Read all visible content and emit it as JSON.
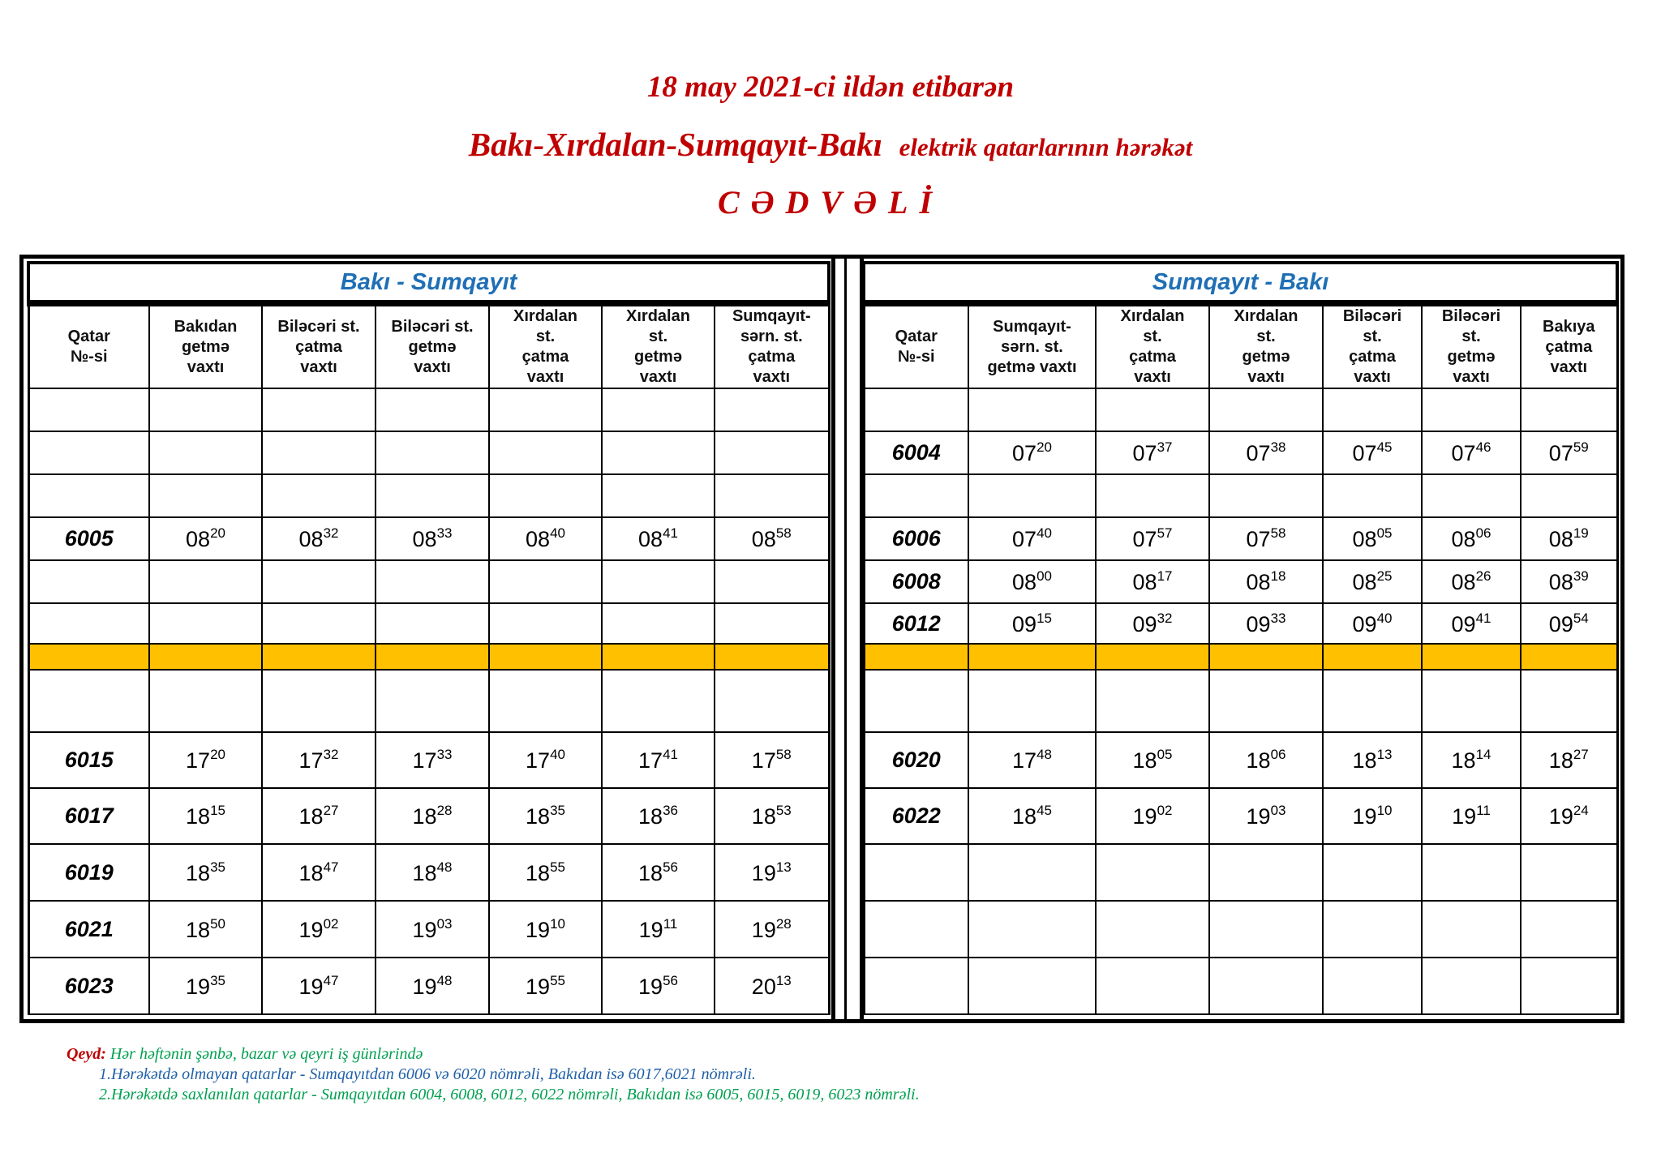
{
  "title": {
    "line1": "18  may  2021-ci ildən etibarən",
    "line2_main": "Bakı-Xırdalan-Sumqayıt-Bakı",
    "line2_rest": "elektrik qatarlarının  hərəkət",
    "line3": "CƏDVƏLİ"
  },
  "colors": {
    "title": "#c00000",
    "section": "#1f6fb5",
    "highlight_row": "#ffc000",
    "note_green": "#00a050",
    "note_blue": "#1f5fa8"
  },
  "left": {
    "section": "Bakı - Sumqayıt",
    "headers": [
      "Qatar\n№-si",
      "Bakıdan\ngetmə\nvaxtı",
      "Biləcəri st.\nçatma\nvaxtı",
      "Biləcəri st.\ngetmə\nvaxtı",
      "Xırdalan\nst.\nçatma\nvaxtı",
      "Xırdalan\nst.\ngetmə\nvaxtı",
      "Sumqayıt-\nsərn. st.\nçatma\nvaxtı"
    ],
    "rows": [
      {
        "train": "",
        "times": []
      },
      {
        "train": "",
        "times": []
      },
      {
        "train": "",
        "times": []
      },
      {
        "train": "6005",
        "times": [
          "08:20",
          "08:32",
          "08:33",
          "08:40",
          "08:41",
          "08:58"
        ]
      },
      {
        "train": "",
        "times": []
      },
      {
        "train": "",
        "times": []
      },
      {
        "highlight": true,
        "train": "",
        "times": []
      },
      {
        "train": "",
        "times": []
      },
      {
        "train": "6015",
        "times": [
          "17:20",
          "17:32",
          "17:33",
          "17:40",
          "17:41",
          "17:58"
        ]
      },
      {
        "train": "6017",
        "times": [
          "18:15",
          "18:27",
          "18:28",
          "18:35",
          "18:36",
          "18:53"
        ]
      },
      {
        "train": "6019",
        "times": [
          "18:35",
          "18:47",
          "18:48",
          "18:55",
          "18:56",
          "19:13"
        ]
      },
      {
        "train": "6021",
        "times": [
          "18:50",
          "19:02",
          "19:03",
          "19:10",
          "19:11",
          "19:28"
        ]
      },
      {
        "train": "6023",
        "times": [
          "19:35",
          "19:47",
          "19:48",
          "19:55",
          "19:56",
          "20:13"
        ]
      }
    ]
  },
  "right": {
    "section": "Sumqayıt - Bakı",
    "headers": [
      "Qatar\n№-si",
      "Sumqayıt-\nsərn.  st.\ngetmə vaxtı",
      "Xırdalan\nst.\nçatma\nvaxtı",
      "Xırdalan\nst.\ngetmə\nvaxtı",
      "Biləcəri\nst.\nçatma\nvaxtı",
      "Biləcəri\nst.\ngetmə\nvaxtı",
      "Bakıya\nçatma\nvaxtı"
    ],
    "rows": [
      {
        "train": "",
        "times": []
      },
      {
        "train": "6004",
        "times": [
          "07:20",
          "07:37",
          "07:38",
          "07:45",
          "07:46",
          "07:59"
        ]
      },
      {
        "train": "",
        "times": []
      },
      {
        "train": "6006",
        "times": [
          "07:40",
          "07:57",
          "07:58",
          "08:05",
          "08:06",
          "08:19"
        ]
      },
      {
        "train": "6008",
        "times": [
          "08:00",
          "08:17",
          "08:18",
          "08:25",
          "08:26",
          "08:39"
        ]
      },
      {
        "train": "6012",
        "times": [
          "09:15",
          "09:32",
          "09:33",
          "09:40",
          "09:41",
          "09:54"
        ]
      },
      {
        "highlight": true,
        "train": "",
        "times": []
      },
      {
        "train": "",
        "times": []
      },
      {
        "train": "6020",
        "times": [
          "17:48",
          "18:05",
          "18:06",
          "18:13",
          "18:14",
          "18:27"
        ]
      },
      {
        "train": "6022",
        "times": [
          "18:45",
          "19:02",
          "19:03",
          "19:10",
          "19:11",
          "19:24"
        ]
      },
      {
        "train": "",
        "times": []
      },
      {
        "train": "",
        "times": []
      },
      {
        "train": "",
        "times": []
      }
    ]
  },
  "notes": {
    "label": "Qeyd:",
    "intro": "Hər həftənin şənbə, bazar və qeyri iş günlərində",
    "item1": "1.Hərəkətdə olmayan qatarlar - Sumqayıtdan 6006 və 6020 nömrəli, Bakıdan isə 6017,6021 nömrəli.",
    "item2": "2.Hərəkətdə saxlanılan qatarlar - Sumqayıtdan 6004, 6008, 6012, 6022  nömrəli, Bakıdan isə 6005, 6015, 6019, 6023 nömrəli."
  }
}
